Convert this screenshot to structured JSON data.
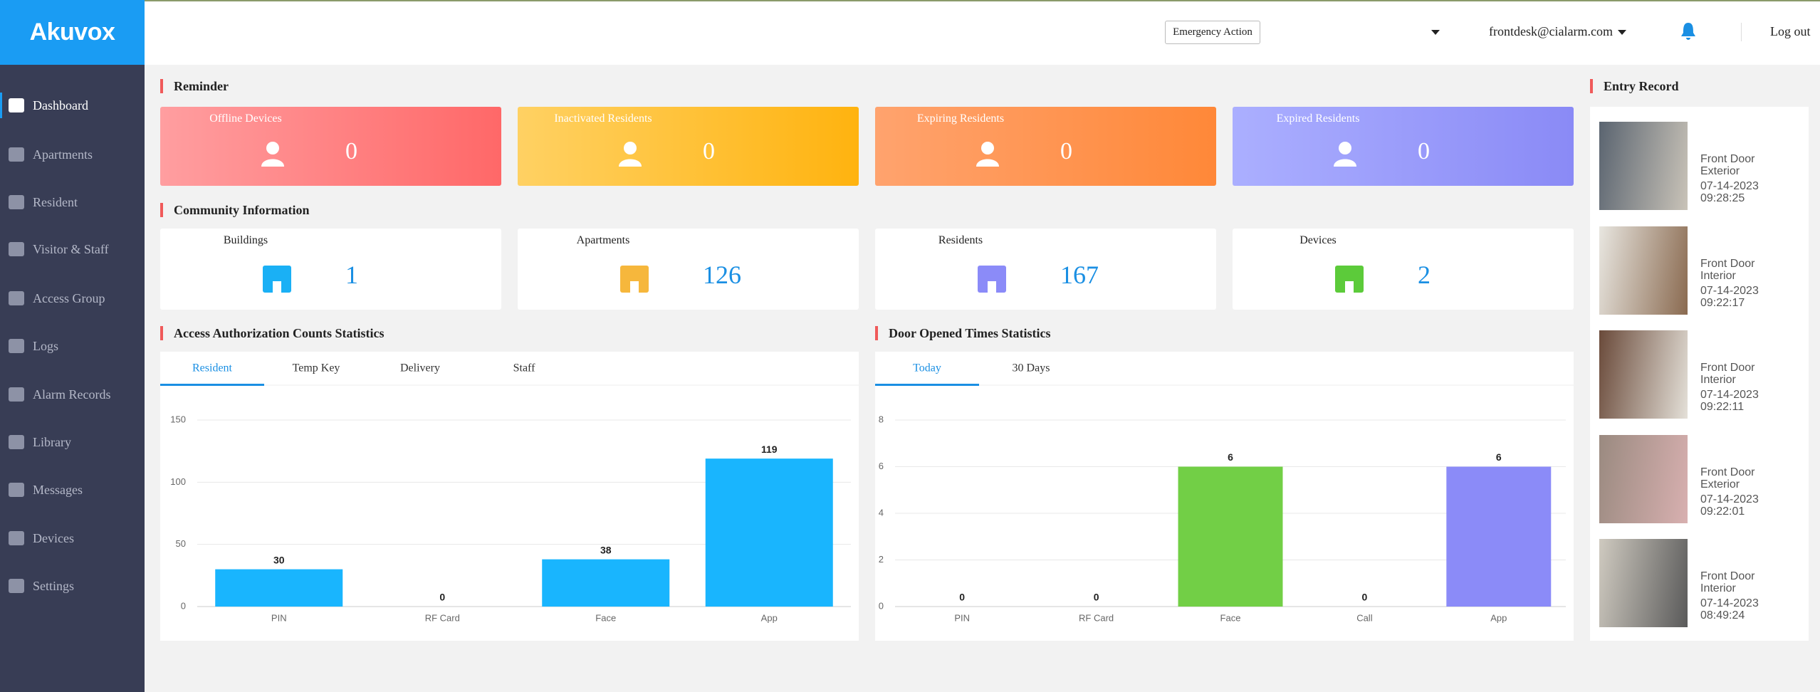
{
  "header": {
    "logo": "Akuvox",
    "emergency": "Emergency Action",
    "user": "frontdesk@cialarm.com",
    "logout": "Log out"
  },
  "sidebar": [
    "Dashboard",
    "Apartments",
    "Resident",
    "Visitor & Staff",
    "Access Group",
    "Logs",
    "Alarm Records",
    "Library",
    "Messages",
    "Devices",
    "Settings"
  ],
  "reminder": {
    "title": "Reminder",
    "cards": [
      {
        "label": "Offline Devices",
        "value": 0
      },
      {
        "label": "Inactivated Residents",
        "value": 0
      },
      {
        "label": "Expiring Residents",
        "value": 0
      },
      {
        "label": "Expired Residents",
        "value": 0
      }
    ]
  },
  "community": {
    "title": "Community Information",
    "cards": [
      {
        "label": "Buildings",
        "value": 1
      },
      {
        "label": "Apartments",
        "value": 126
      },
      {
        "label": "Residents",
        "value": 167
      },
      {
        "label": "Devices",
        "value": 2
      }
    ]
  },
  "chart_data": [
    {
      "type": "bar",
      "title": "Access Authorization Counts Statistics",
      "tabs": [
        "Resident",
        "Temp Key",
        "Delivery",
        "Staff"
      ],
      "categories": [
        "PIN",
        "RF Card",
        "Face",
        "App"
      ],
      "values": [
        30,
        0,
        38,
        119
      ],
      "colors": [
        "#19b5fe",
        "#19b5fe",
        "#19b5fe",
        "#19b5fe"
      ],
      "ylim": [
        0,
        150
      ],
      "yticks": [
        0,
        50,
        100,
        150
      ],
      "grid": true
    },
    {
      "type": "bar",
      "title": "Door Opened Times Statistics",
      "tabs": [
        "Today",
        "30 Days"
      ],
      "categories": [
        "PIN",
        "RF Card",
        "Face",
        "Call",
        "App"
      ],
      "values": [
        0,
        0,
        6,
        0,
        6
      ],
      "colors": [
        "#19b5fe",
        "#19b5fe",
        "#72cf46",
        "#19b5fe",
        "#8b8bf8"
      ],
      "ylim": [
        0,
        8
      ],
      "yticks": [
        0,
        2,
        4,
        6,
        8
      ],
      "grid": true
    }
  ],
  "entry_record": {
    "title": "Entry Record",
    "entries": [
      {
        "location": "Front Door Exterior",
        "date": "07-14-2023",
        "time": "09:28:25"
      },
      {
        "location": "Front Door Interior",
        "date": "07-14-2023",
        "time": "09:22:17"
      },
      {
        "location": "Front Door Interior",
        "date": "07-14-2023",
        "time": "09:22:11"
      },
      {
        "location": "Front Door Exterior",
        "date": "07-14-2023",
        "time": "09:22:01"
      },
      {
        "location": "Front Door Interior",
        "date": "07-14-2023",
        "time": "08:49:24"
      }
    ]
  }
}
